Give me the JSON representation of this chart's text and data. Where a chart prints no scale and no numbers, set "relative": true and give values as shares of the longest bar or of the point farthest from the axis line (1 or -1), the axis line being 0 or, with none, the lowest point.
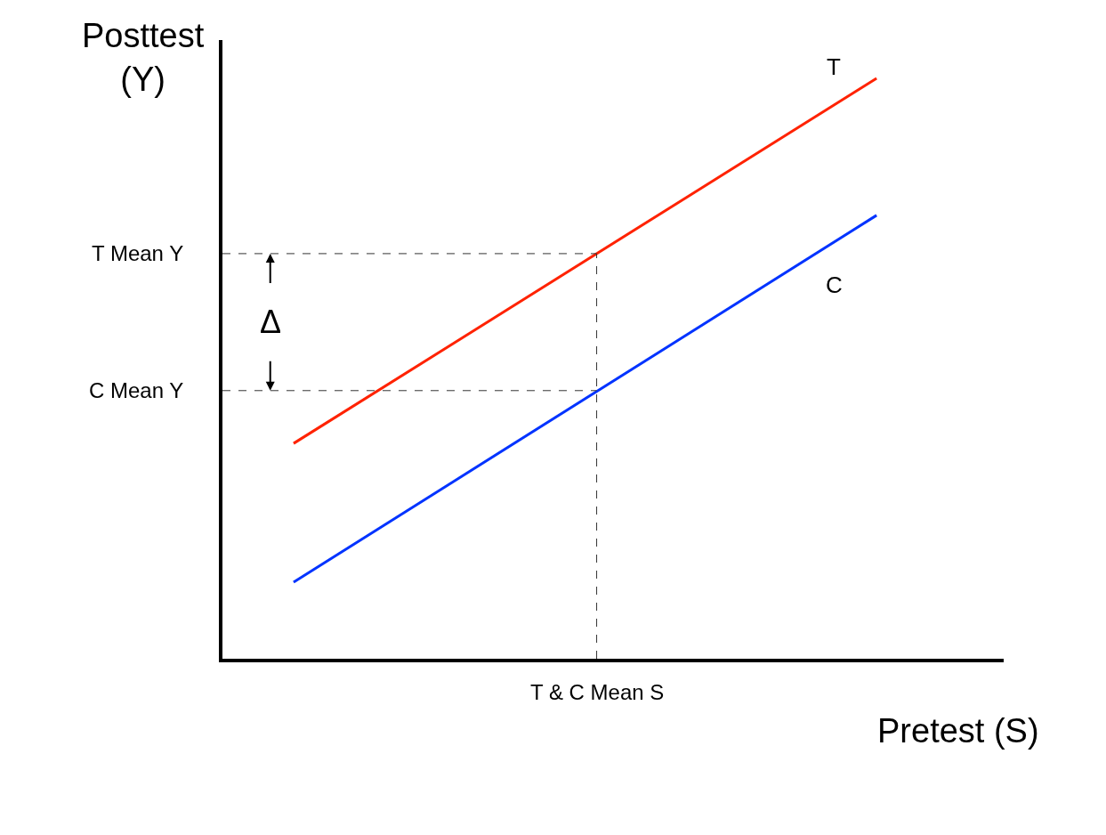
{
  "chart_data": {
    "type": "line",
    "relative": true,
    "xlabel": "Pretest (S)",
    "ylabel": "Posttest (Y)",
    "categories": [
      null,
      null
    ],
    "series": [
      {
        "name": "T",
        "color": "#ff2200",
        "values": [
          0.371,
          1
        ]
      },
      {
        "name": "C",
        "color": "#0033ff",
        "values": [
          0.132,
          0.764
        ]
      }
    ],
    "ref_lines": [
      {
        "axis": "y",
        "value": 0.698,
        "label": "T Mean Y",
        "line_style": "dashed",
        "color": "#333333"
      },
      {
        "axis": "y",
        "value": 0.462,
        "label": "C Mean Y",
        "line_style": "dashed",
        "color": "#333333"
      }
    ],
    "annotations": [
      "Δ",
      "T & C Mean S"
    ],
    "legend": false,
    "marker": "none",
    "line_style": "solid"
  }
}
